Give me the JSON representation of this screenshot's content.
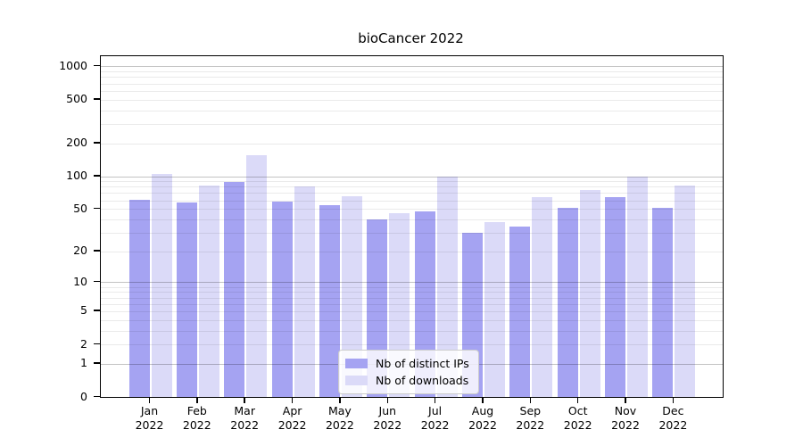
{
  "chart_data": {
    "type": "bar",
    "title": "bioCancer 2022",
    "categories": [
      "Jan",
      "Feb",
      "Mar",
      "Apr",
      "May",
      "Jun",
      "Jul",
      "Aug",
      "Sep",
      "Oct",
      "Nov",
      "Dec"
    ],
    "year_label": "2022",
    "series": [
      {
        "name": "Nb of distinct IPs",
        "color": "#a5a3f2",
        "values": [
          61,
          57,
          89,
          58,
          54,
          40,
          47,
          30,
          34,
          51,
          64,
          51
        ]
      },
      {
        "name": "Nb of downloads",
        "color": "#dbdaf8",
        "values": [
          104,
          82,
          155,
          80,
          66,
          46,
          100,
          38,
          64,
          75,
          100,
          82
        ]
      }
    ],
    "y_ticks": [
      0,
      1,
      2,
      5,
      10,
      20,
      50,
      100,
      200,
      500,
      1000
    ],
    "y_scale": "log1p",
    "ylim": [
      0,
      1238
    ],
    "major_grid_values": [
      1,
      10,
      100,
      1000
    ],
    "minor_grid_decades": [
      1,
      10,
      100
    ],
    "grid": "on",
    "legend_position": "lower center",
    "colors": {
      "major_grid": "#c3c3c3",
      "minor_grid": "#e9e9e9",
      "axis": "#000000",
      "background": "#ffffff"
    }
  }
}
